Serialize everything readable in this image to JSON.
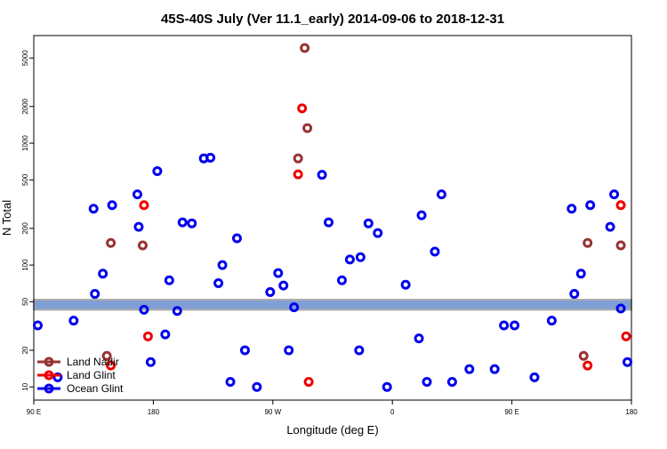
{
  "chart_data": {
    "type": "scatter",
    "title": "45S-40S July (Ver 11.1_early)   2014-09-06 to 2018-12-31",
    "x_label": "Longitude (deg E)",
    "y_label": "N Total",
    "xlim": [
      90,
      540
    ],
    "xticks": [
      {
        "value": 90,
        "label": "90 E"
      },
      {
        "value": 180,
        "label": "180"
      },
      {
        "value": 270,
        "label": "90 W"
      },
      {
        "value": 360,
        "label": "0"
      },
      {
        "value": 450,
        "label": "90 E"
      },
      {
        "value": 540,
        "label": "180"
      }
    ],
    "ylim": [
      7.8,
      7640
    ],
    "log_y": true,
    "yticks": [
      10,
      20,
      50,
      100,
      200,
      500,
      1000,
      2000,
      5000
    ],
    "reference_band": [
      43,
      52
    ],
    "legend": "bottom-left",
    "series": [
      {
        "name": "Land Nadir",
        "color": "#993333",
        "x": [
          148,
          172,
          145,
          294,
          296,
          289,
          507,
          504,
          532
        ],
        "values": [
          152,
          145,
          18,
          6040,
          1330,
          750,
          152,
          18,
          145
        ]
      },
      {
        "name": "Land Glint",
        "color": "#ee0000",
        "x": [
          173,
          176,
          148,
          292,
          289,
          297,
          507,
          532,
          536
        ],
        "values": [
          310,
          26,
          15,
          1930,
          555,
          11,
          15,
          310,
          26
        ]
      },
      {
        "name": "Ocean Glint",
        "color": "#0000ee",
        "x": [
          93,
          108,
          120,
          135,
          136,
          142,
          149,
          168,
          169,
          173,
          178,
          183,
          189,
          192,
          198,
          202,
          209,
          218,
          223,
          229,
          232,
          238,
          243,
          249,
          258,
          268,
          274,
          278,
          282,
          286,
          307,
          312,
          322,
          328,
          336,
          335,
          342,
          349,
          356,
          370,
          380,
          382,
          386,
          392,
          397,
          405,
          418,
          437,
          444,
          452,
          467,
          480,
          495,
          497,
          502,
          509,
          524,
          527,
          532,
          537
        ],
        "values": [
          32,
          12,
          35,
          290,
          58,
          85,
          310,
          380,
          206,
          43,
          16,
          590,
          27,
          75,
          42,
          224,
          220,
          750,
          760,
          71,
          100,
          11,
          166,
          20,
          10,
          60,
          86,
          68,
          20,
          45,
          550,
          224,
          75,
          111,
          116,
          20,
          220,
          183,
          10,
          69,
          25,
          256,
          11,
          129,
          380,
          11,
          14,
          14,
          32,
          32,
          12,
          35,
          290,
          58,
          85,
          310,
          206,
          380,
          44,
          16
        ]
      }
    ]
  }
}
